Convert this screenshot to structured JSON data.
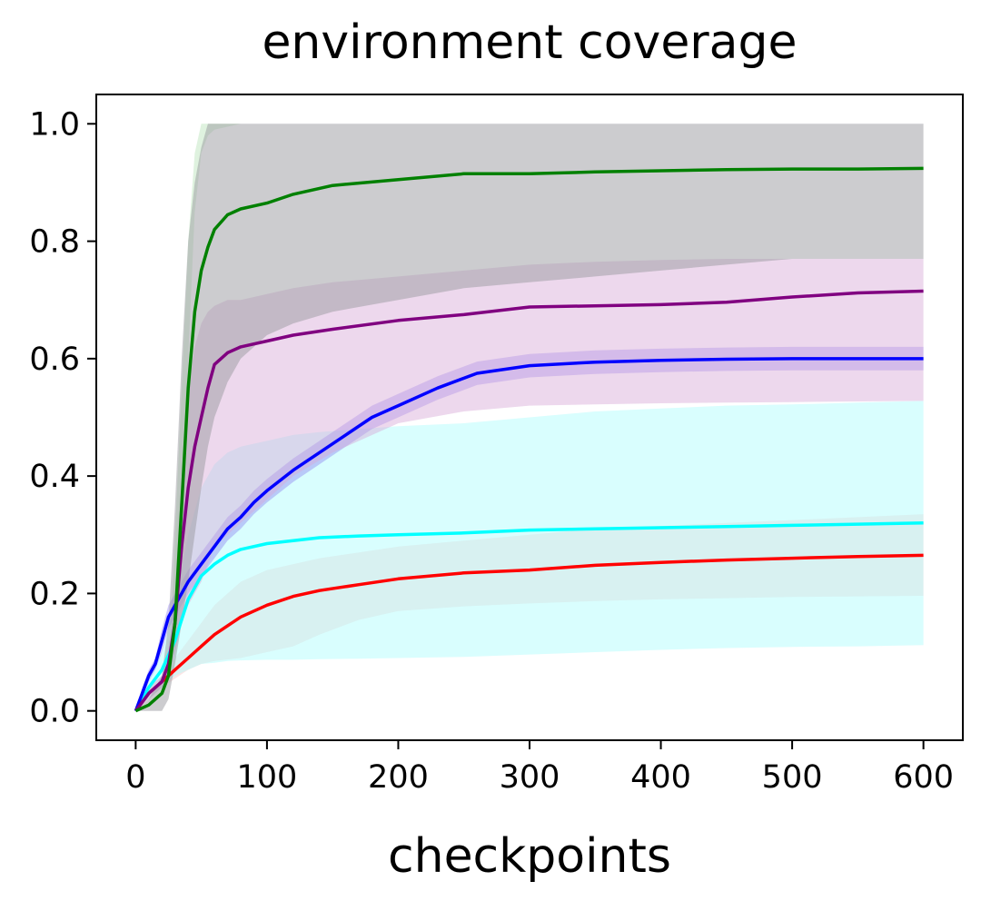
{
  "chart_data": {
    "type": "line",
    "title": "environment coverage",
    "xlabel": "checkpoints",
    "ylabel": "",
    "xlim": [
      -30,
      630
    ],
    "ylim": [
      -0.05,
      1.05
    ],
    "xticks": [
      0,
      100,
      200,
      300,
      400,
      500,
      600
    ],
    "yticks": [
      0.0,
      0.2,
      0.4,
      0.6,
      0.8,
      1.0
    ],
    "xtick_labels": [
      "0",
      "100",
      "200",
      "300",
      "400",
      "500",
      "600"
    ],
    "ytick_labels": [
      "0.0",
      "0.2",
      "0.4",
      "0.6",
      "0.8",
      "1.0"
    ],
    "grid": false,
    "series": [
      {
        "color": "#ff0000",
        "band_color": "#f4a9a8",
        "band_opacity": 0.3,
        "x": [
          0,
          10,
          20,
          30,
          40,
          50,
          60,
          80,
          100,
          120,
          140,
          170,
          200,
          250,
          300,
          350,
          400,
          450,
          500,
          550,
          600
        ],
        "y": [
          0.0,
          0.03,
          0.05,
          0.07,
          0.09,
          0.11,
          0.13,
          0.16,
          0.18,
          0.195,
          0.205,
          0.215,
          0.225,
          0.235,
          0.24,
          0.248,
          0.253,
          0.257,
          0.26,
          0.263,
          0.265
        ],
        "lower": [
          0.0,
          0.02,
          0.04,
          0.055,
          0.07,
          0.08,
          0.085,
          0.09,
          0.1,
          0.11,
          0.13,
          0.155,
          0.17,
          0.178,
          0.183,
          0.187,
          0.19,
          0.192,
          0.194,
          0.195,
          0.196
        ],
        "upper": [
          0.0,
          0.04,
          0.06,
          0.09,
          0.12,
          0.15,
          0.18,
          0.22,
          0.24,
          0.25,
          0.26,
          0.27,
          0.28,
          0.29,
          0.3,
          0.31,
          0.315,
          0.32,
          0.325,
          0.33,
          0.335
        ]
      },
      {
        "color": "#00ffff",
        "band_color": "#b3fdfd",
        "band_opacity": 0.5,
        "x": [
          0,
          10,
          20,
          30,
          40,
          50,
          60,
          70,
          80,
          100,
          120,
          140,
          170,
          200,
          250,
          300,
          350,
          400,
          450,
          500,
          550,
          600
        ],
        "y": [
          0.0,
          0.04,
          0.07,
          0.12,
          0.19,
          0.23,
          0.25,
          0.265,
          0.275,
          0.285,
          0.29,
          0.295,
          0.298,
          0.3,
          0.303,
          0.308,
          0.31,
          0.312,
          0.314,
          0.316,
          0.318,
          0.32
        ],
        "lower": [
          0.0,
          0.02,
          0.04,
          0.06,
          0.07,
          0.08,
          0.082,
          0.085,
          0.086,
          0.087,
          0.087,
          0.088,
          0.089,
          0.09,
          0.092,
          0.096,
          0.1,
          0.104,
          0.107,
          0.109,
          0.11,
          0.112
        ],
        "upper": [
          0.0,
          0.06,
          0.1,
          0.18,
          0.3,
          0.38,
          0.42,
          0.44,
          0.45,
          0.46,
          0.47,
          0.475,
          0.48,
          0.485,
          0.49,
          0.5,
          0.51,
          0.515,
          0.52,
          0.522,
          0.525,
          0.528
        ]
      },
      {
        "color": "#0000ff",
        "band_color": "#7c68ee",
        "band_opacity": 0.35,
        "x": [
          0,
          5,
          10,
          15,
          20,
          25,
          30,
          40,
          50,
          60,
          70,
          80,
          90,
          100,
          120,
          140,
          160,
          180,
          200,
          230,
          260,
          300,
          350,
          400,
          450,
          500,
          550,
          600
        ],
        "y": [
          0.0,
          0.03,
          0.06,
          0.08,
          0.12,
          0.16,
          0.18,
          0.22,
          0.25,
          0.28,
          0.31,
          0.33,
          0.355,
          0.375,
          0.41,
          0.44,
          0.47,
          0.5,
          0.52,
          0.55,
          0.575,
          0.588,
          0.594,
          0.597,
          0.599,
          0.6,
          0.6,
          0.6
        ],
        "lower": [
          0.0,
          0.02,
          0.05,
          0.07,
          0.1,
          0.14,
          0.16,
          0.2,
          0.23,
          0.26,
          0.29,
          0.31,
          0.335,
          0.355,
          0.39,
          0.42,
          0.45,
          0.48,
          0.5,
          0.53,
          0.555,
          0.568,
          0.574,
          0.577,
          0.579,
          0.58,
          0.58,
          0.58
        ],
        "upper": [
          0.0,
          0.04,
          0.07,
          0.09,
          0.14,
          0.18,
          0.2,
          0.24,
          0.27,
          0.3,
          0.33,
          0.35,
          0.375,
          0.395,
          0.43,
          0.46,
          0.49,
          0.52,
          0.54,
          0.57,
          0.595,
          0.608,
          0.614,
          0.617,
          0.619,
          0.62,
          0.62,
          0.62
        ]
      },
      {
        "color": "#800080",
        "band_color": "#d8a8d8",
        "band_opacity": 0.45,
        "x": [
          0,
          10,
          20,
          25,
          30,
          35,
          40,
          45,
          50,
          55,
          60,
          70,
          80,
          100,
          120,
          150,
          200,
          250,
          300,
          350,
          400,
          450,
          500,
          550,
          600
        ],
        "y": [
          0.0,
          0.03,
          0.05,
          0.08,
          0.15,
          0.28,
          0.38,
          0.45,
          0.5,
          0.55,
          0.59,
          0.61,
          0.62,
          0.63,
          0.64,
          0.65,
          0.665,
          0.675,
          0.688,
          0.69,
          0.692,
          0.696,
          0.705,
          0.712,
          0.715
        ],
        "lower": [
          0.0,
          0.02,
          0.04,
          0.06,
          0.1,
          0.15,
          0.18,
          0.2,
          0.22,
          0.25,
          0.28,
          0.3,
          0.32,
          0.36,
          0.4,
          0.44,
          0.49,
          0.51,
          0.52,
          0.522,
          0.524,
          0.525,
          0.526,
          0.527,
          0.528
        ],
        "upper": [
          0.0,
          0.04,
          0.06,
          0.1,
          0.2,
          0.4,
          0.55,
          0.62,
          0.66,
          0.68,
          0.69,
          0.7,
          0.7,
          0.71,
          0.72,
          0.73,
          0.74,
          0.75,
          0.76,
          0.765,
          0.768,
          0.77,
          0.77,
          0.77,
          0.77
        ]
      },
      {
        "color": "#008000",
        "band_color": "#9a9aa0",
        "band_opacity": 0.5,
        "x": [
          0,
          10,
          20,
          25,
          30,
          35,
          40,
          45,
          50,
          55,
          60,
          70,
          80,
          100,
          120,
          150,
          200,
          250,
          300,
          350,
          400,
          450,
          500,
          550,
          600
        ],
        "y": [
          0.0,
          0.01,
          0.03,
          0.06,
          0.15,
          0.35,
          0.55,
          0.68,
          0.75,
          0.79,
          0.82,
          0.845,
          0.855,
          0.865,
          0.88,
          0.895,
          0.905,
          0.915,
          0.915,
          0.918,
          0.92,
          0.922,
          0.923,
          0.923,
          0.924
        ],
        "lower": [
          0.0,
          0.0,
          0.0,
          0.02,
          0.08,
          0.15,
          0.22,
          0.3,
          0.38,
          0.45,
          0.5,
          0.56,
          0.6,
          0.64,
          0.66,
          0.68,
          0.7,
          0.72,
          0.73,
          0.74,
          0.75,
          0.76,
          0.77,
          0.77,
          0.77
        ],
        "upper": [
          0.0,
          0.02,
          0.06,
          0.15,
          0.35,
          0.6,
          0.8,
          0.9,
          0.96,
          1.0,
          1.0,
          1.0,
          1.0,
          1.0,
          1.0,
          1.0,
          1.0,
          1.0,
          1.0,
          1.0,
          1.0,
          1.0,
          1.0,
          1.0,
          1.0
        ]
      }
    ],
    "extra_bands": [
      {
        "color": "#c9e9c9",
        "opacity": 0.6,
        "x": [
          28,
          35,
          40,
          45,
          50,
          55,
          60,
          80,
          600
        ],
        "lower": [
          0.1,
          0.35,
          0.6,
          0.85,
          0.95,
          0.98,
          0.99,
          1.0,
          1.0
        ],
        "upper": [
          0.2,
          0.55,
          0.8,
          0.95,
          1.0,
          1.0,
          1.0,
          1.0,
          1.0
        ]
      }
    ]
  }
}
